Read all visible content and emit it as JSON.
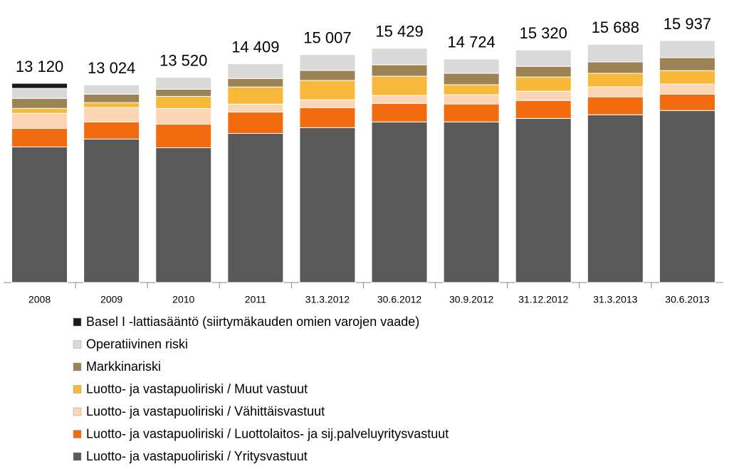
{
  "chart_data": {
    "type": "stacked_bar",
    "categories": [
      "2008",
      "2009",
      "2010",
      "2011",
      "31.3.2012",
      "30.6.2012",
      "30.9.2012",
      "31.12.2012",
      "31.3.2013",
      "30.6.2013"
    ],
    "totals": [
      13120,
      13024,
      13520,
      14409,
      15007,
      15429,
      14724,
      15320,
      15688,
      15937
    ],
    "total_labels": [
      "13 120",
      "13 024",
      "13 520",
      "14 409",
      "15 007",
      "15 429",
      "14 724",
      "15 320",
      "15 688",
      "15 937"
    ],
    "series": [
      {
        "name": "Luotto- ja vastapuoliriski / Yritysvastuut",
        "color": "#595959",
        "values": [
          8930,
          9450,
          8880,
          9820,
          10200,
          10580,
          10580,
          10810,
          11050,
          11330
        ]
      },
      {
        "name": "Luotto- ja vastapuoliriski / Luottolaitos- ja sij.palveluyritysvastuut",
        "color": "#f26b0f",
        "values": [
          1220,
          1130,
          1550,
          1410,
          1320,
          1220,
          1180,
          1180,
          1180,
          1080
        ]
      },
      {
        "name": "Luotto- ja vastapuoliriski / Vähittäisvastuut",
        "color": "#fcd5b4",
        "values": [
          990,
          940,
          1030,
          520,
          520,
          520,
          610,
          610,
          660,
          660
        ]
      },
      {
        "name": "Luotto- ja vastapuoliriski / Muut vastuut",
        "color": "#f8b93a",
        "values": [
          330,
          330,
          800,
          1130,
          1270,
          1270,
          660,
          940,
          890,
          890
        ]
      },
      {
        "name": "Markkinariski",
        "color": "#9b8356",
        "values": [
          660,
          560,
          470,
          560,
          660,
          750,
          750,
          700,
          750,
          850
        ]
      },
      {
        "name": "Operatiivinen riski",
        "color": "#d9d9d9",
        "values": [
          660,
          610,
          790,
          970,
          1040,
          1090,
          940,
          1080,
          1160,
          1130
        ]
      },
      {
        "name": "Basel I -lattiasääntö (siirtymäkauden omien varojen vaade)",
        "color": "#1a1a1a",
        "values": [
          330,
          null,
          null,
          null,
          null,
          null,
          null,
          null,
          null,
          null
        ]
      }
    ]
  }
}
